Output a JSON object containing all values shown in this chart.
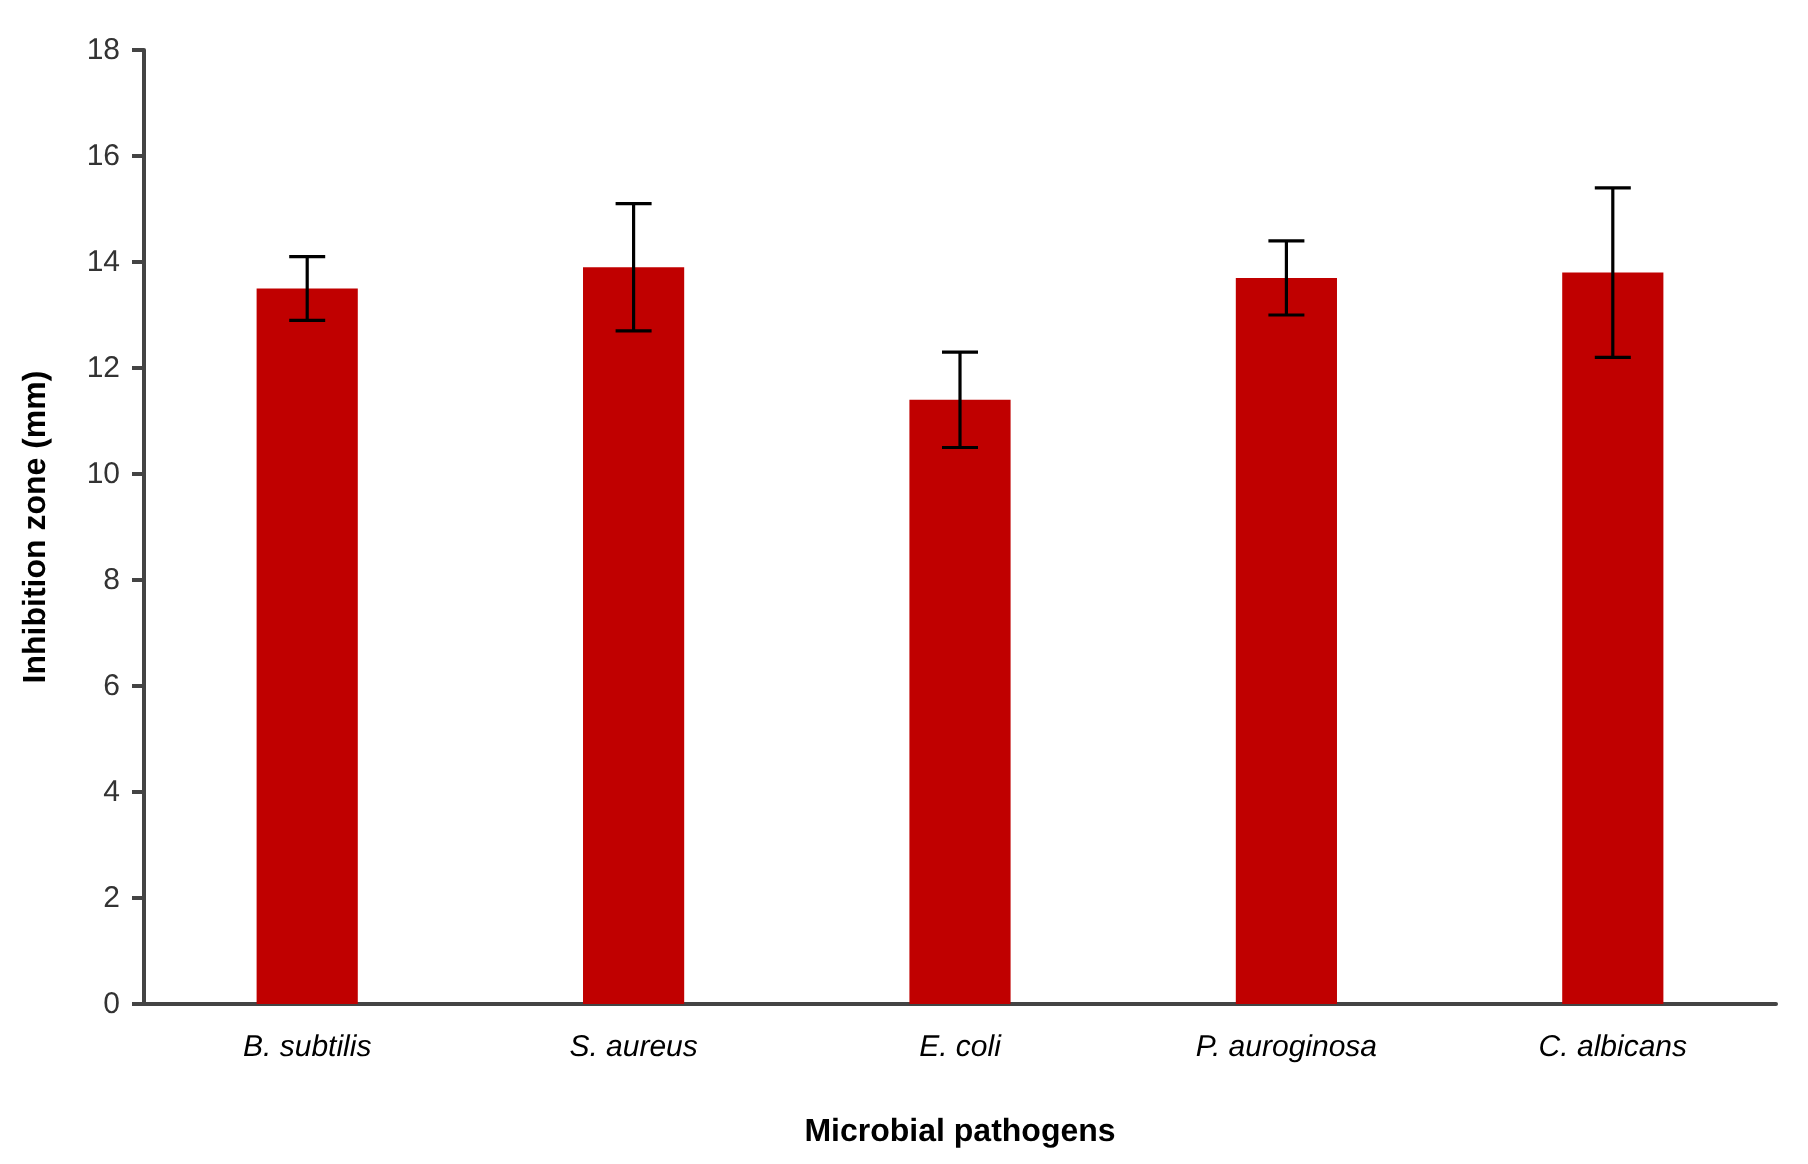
{
  "chart_data": {
    "type": "bar",
    "xlabel": "Microbial pathogens",
    "ylabel": "Inhibition zone (mm)",
    "categories": [
      "B. subtilis",
      "S. aureus",
      "E. coli",
      "P. auroginosa",
      "C. albicans"
    ],
    "values": [
      13.5,
      13.9,
      11.4,
      13.7,
      13.8
    ],
    "errors": [
      0.6,
      1.2,
      0.9,
      0.7,
      1.6
    ],
    "color": "#c00000",
    "ylim": [
      0,
      18
    ],
    "yticks": [
      0,
      2,
      4,
      6,
      8,
      10,
      12,
      14,
      16,
      18
    ],
    "grid": false
  }
}
